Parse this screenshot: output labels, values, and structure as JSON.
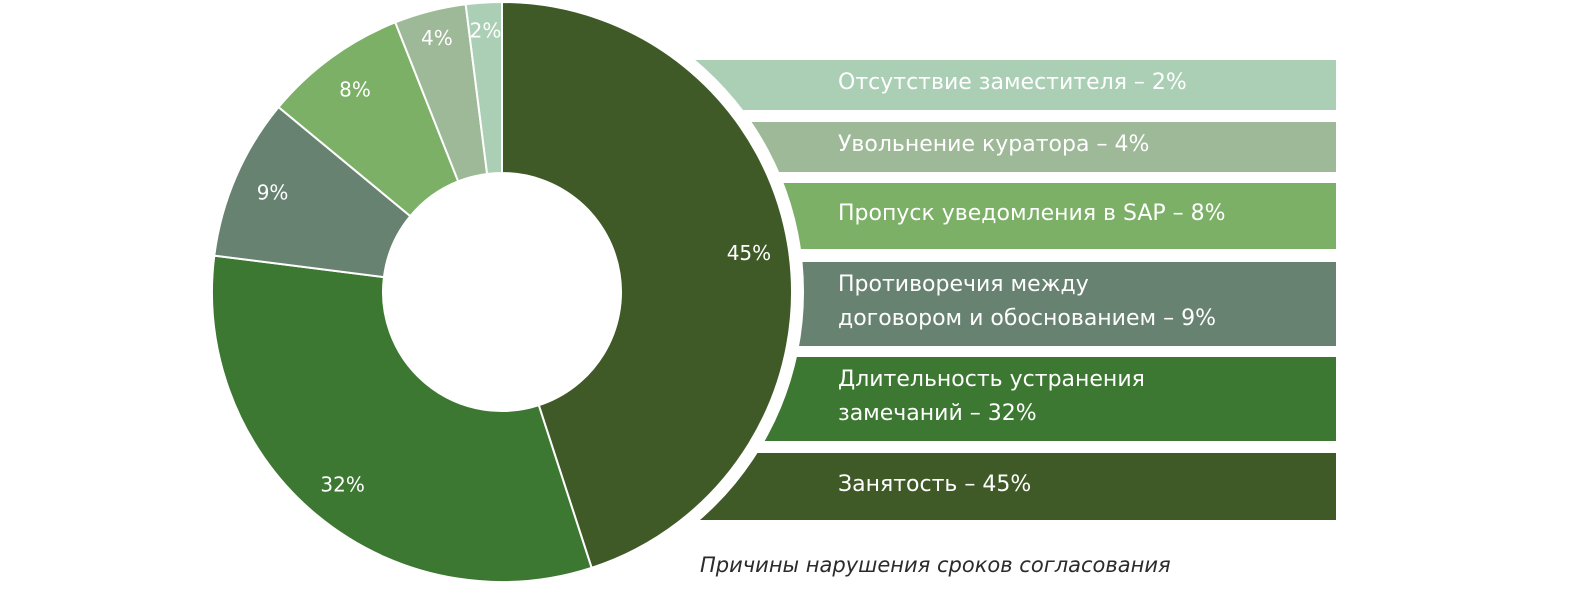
{
  "chart_data": {
    "type": "pie",
    "title": "",
    "caption": "Причины нарушения сроков согласования",
    "slices": [
      {
        "label": "Занятость – 45%",
        "value": 45,
        "value_label": "45%",
        "color": "#3f5a27"
      },
      {
        "label": "Длительность устранения\nзамечаний – 32%",
        "value": 32,
        "value_label": "32%",
        "color": "#3d7833"
      },
      {
        "label": "Противоречия между\nдоговором и обоснованием – 9%",
        "value": 9,
        "value_label": "9%",
        "color": "#688271"
      },
      {
        "label": "Пропуск уведомления в SAP – 8%",
        "value": 8,
        "value_label": "8%",
        "color": "#7bb066"
      },
      {
        "label": "Увольнение куратора – 4%",
        "value": 4,
        "value_label": "4%",
        "color": "#9eb997"
      },
      {
        "label": "Отсутствие заместителя – 2%",
        "value": 2,
        "value_label": "2%",
        "color": "#abcfb5"
      }
    ],
    "legend_order": [
      5,
      4,
      3,
      2,
      1,
      0
    ],
    "style": "donut"
  }
}
